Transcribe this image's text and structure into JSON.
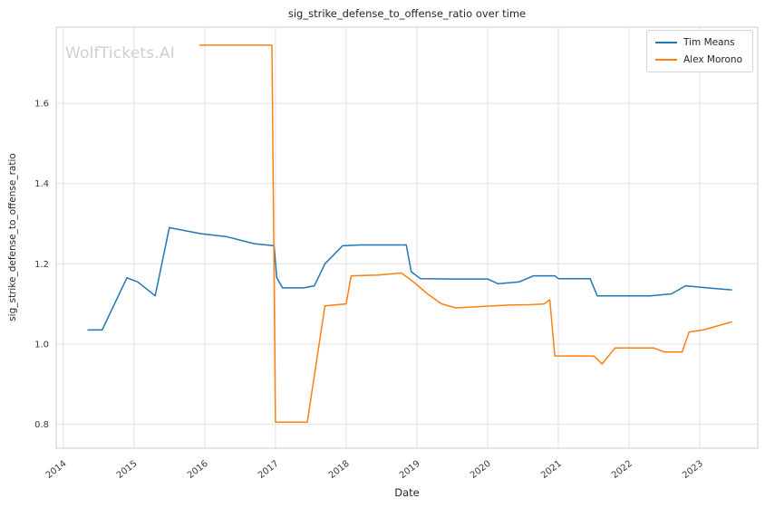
{
  "chart_data": {
    "type": "line",
    "title": "sig_strike_defense_to_offense_ratio over time",
    "xlabel": "Date",
    "ylabel": "sig_strike_defense_to_offense_ratio",
    "watermark": "WolfTickets.AI",
    "grid": true,
    "legend_position": "upper right",
    "grid_color": "#e1e1e1",
    "border_color": "#d4d4d4",
    "background_color": "#ffffff",
    "xlim": [
      2013.9,
      2023.82
    ],
    "ylim": [
      0.74,
      1.79
    ],
    "x_ticks": [
      2014,
      2015,
      2016,
      2017,
      2018,
      2019,
      2020,
      2021,
      2022,
      2023
    ],
    "x_tick_labels": [
      "2014",
      "2015",
      "2016",
      "2017",
      "2018",
      "2019",
      "2020",
      "2021",
      "2022",
      "2023"
    ],
    "y_ticks": [
      0.8,
      1.0,
      1.2,
      1.4,
      1.6
    ],
    "y_tick_labels": [
      "0.8",
      "1.0",
      "1.2",
      "1.4",
      "1.6"
    ],
    "series": [
      {
        "name": "Tim Means",
        "color": "#1f77b4",
        "x": [
          2014.35,
          2014.55,
          2014.9,
          2015.05,
          2015.3,
          2015.5,
          2015.95,
          2016.3,
          2016.7,
          2016.98,
          2017.02,
          2017.1,
          2017.4,
          2017.55,
          2017.7,
          2017.95,
          2018.2,
          2018.85,
          2018.92,
          2019.05,
          2019.5,
          2020.0,
          2020.15,
          2020.45,
          2020.65,
          2020.95,
          2021.0,
          2021.45,
          2021.55,
          2022.3,
          2022.6,
          2022.8,
          2023.1,
          2023.45
        ],
        "y": [
          1.035,
          1.035,
          1.165,
          1.155,
          1.12,
          1.29,
          1.275,
          1.268,
          1.25,
          1.245,
          1.165,
          1.14,
          1.14,
          1.145,
          1.2,
          1.245,
          1.247,
          1.247,
          1.18,
          1.163,
          1.162,
          1.162,
          1.15,
          1.155,
          1.17,
          1.17,
          1.163,
          1.163,
          1.12,
          1.12,
          1.125,
          1.145,
          1.14,
          1.135
        ]
      },
      {
        "name": "Alex Morono",
        "color": "#ff7f0e",
        "x": [
          2015.93,
          2016.95,
          2017.0,
          2017.45,
          2017.7,
          2018.0,
          2018.07,
          2018.45,
          2018.78,
          2018.95,
          2019.15,
          2019.35,
          2019.55,
          2019.85,
          2020.3,
          2020.6,
          2020.8,
          2020.88,
          2020.95,
          2021.5,
          2021.62,
          2021.8,
          2022.35,
          2022.5,
          2022.75,
          2022.85,
          2023.05,
          2023.45
        ],
        "y": [
          1.745,
          1.745,
          0.805,
          0.805,
          1.095,
          1.1,
          1.17,
          1.172,
          1.177,
          1.155,
          1.125,
          1.1,
          1.09,
          1.093,
          1.097,
          1.098,
          1.1,
          1.11,
          0.97,
          0.97,
          0.95,
          0.99,
          0.99,
          0.98,
          0.98,
          1.03,
          1.035,
          1.055
        ]
      }
    ]
  }
}
